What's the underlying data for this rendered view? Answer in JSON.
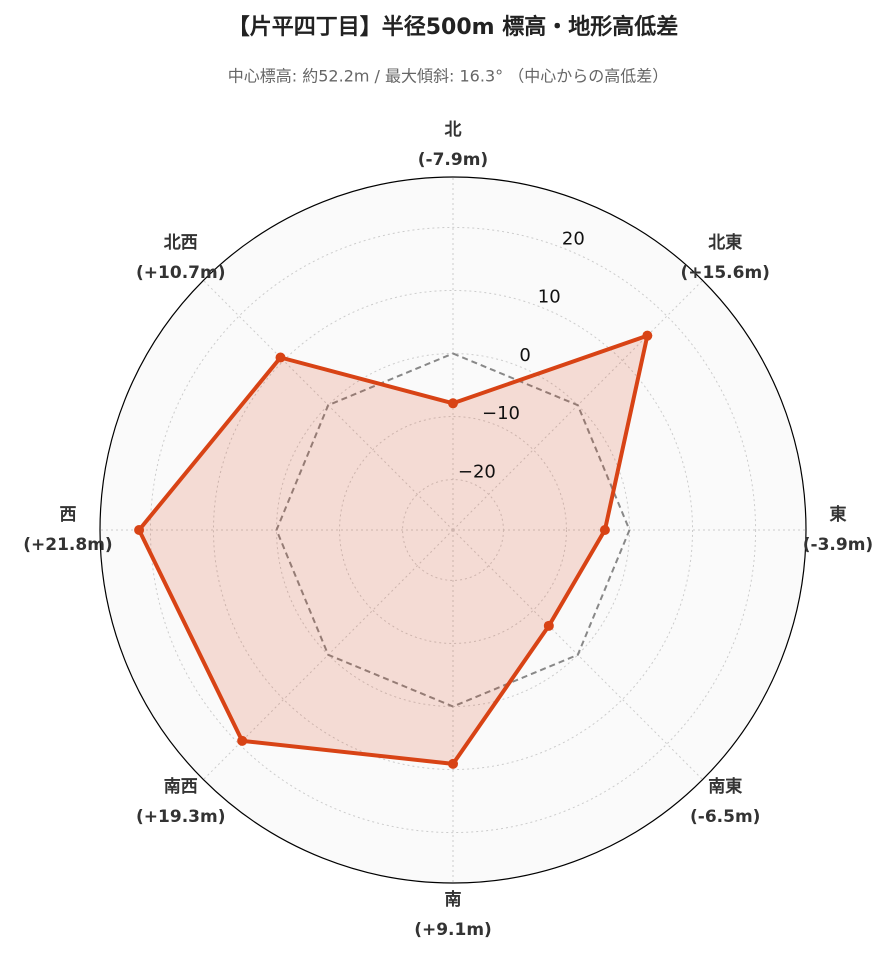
{
  "chart_data": {
    "type": "radar",
    "title": "【片平四丁目】半径500m 標高・地形高低差",
    "subtitle": "中心標高: 約52.2m / 最大傾斜: 16.3° （中心からの高低差）",
    "categories": [
      "北",
      "北東",
      "東",
      "南東",
      "南",
      "南西",
      "西",
      "北西"
    ],
    "series": [
      {
        "name": "高低差",
        "color": "#d84315",
        "values": [
          -7.9,
          15.6,
          -3.9,
          -6.5,
          9.1,
          19.3,
          21.8,
          10.7
        ],
        "value_labels": [
          "(-7.9m)",
          "(+15.6m)",
          "(-3.9m)",
          "(-6.5m)",
          "(+9.1m)",
          "(+19.3m)",
          "(+21.8m)",
          "(+10.7m)"
        ]
      }
    ],
    "reference_line": 0,
    "ylim": [
      -28,
      28
    ],
    "yticks": [
      {
        "value": -20,
        "label": "−20"
      },
      {
        "value": -10,
        "label": "−10"
      },
      0,
      10,
      20
    ],
    "grid": true
  }
}
